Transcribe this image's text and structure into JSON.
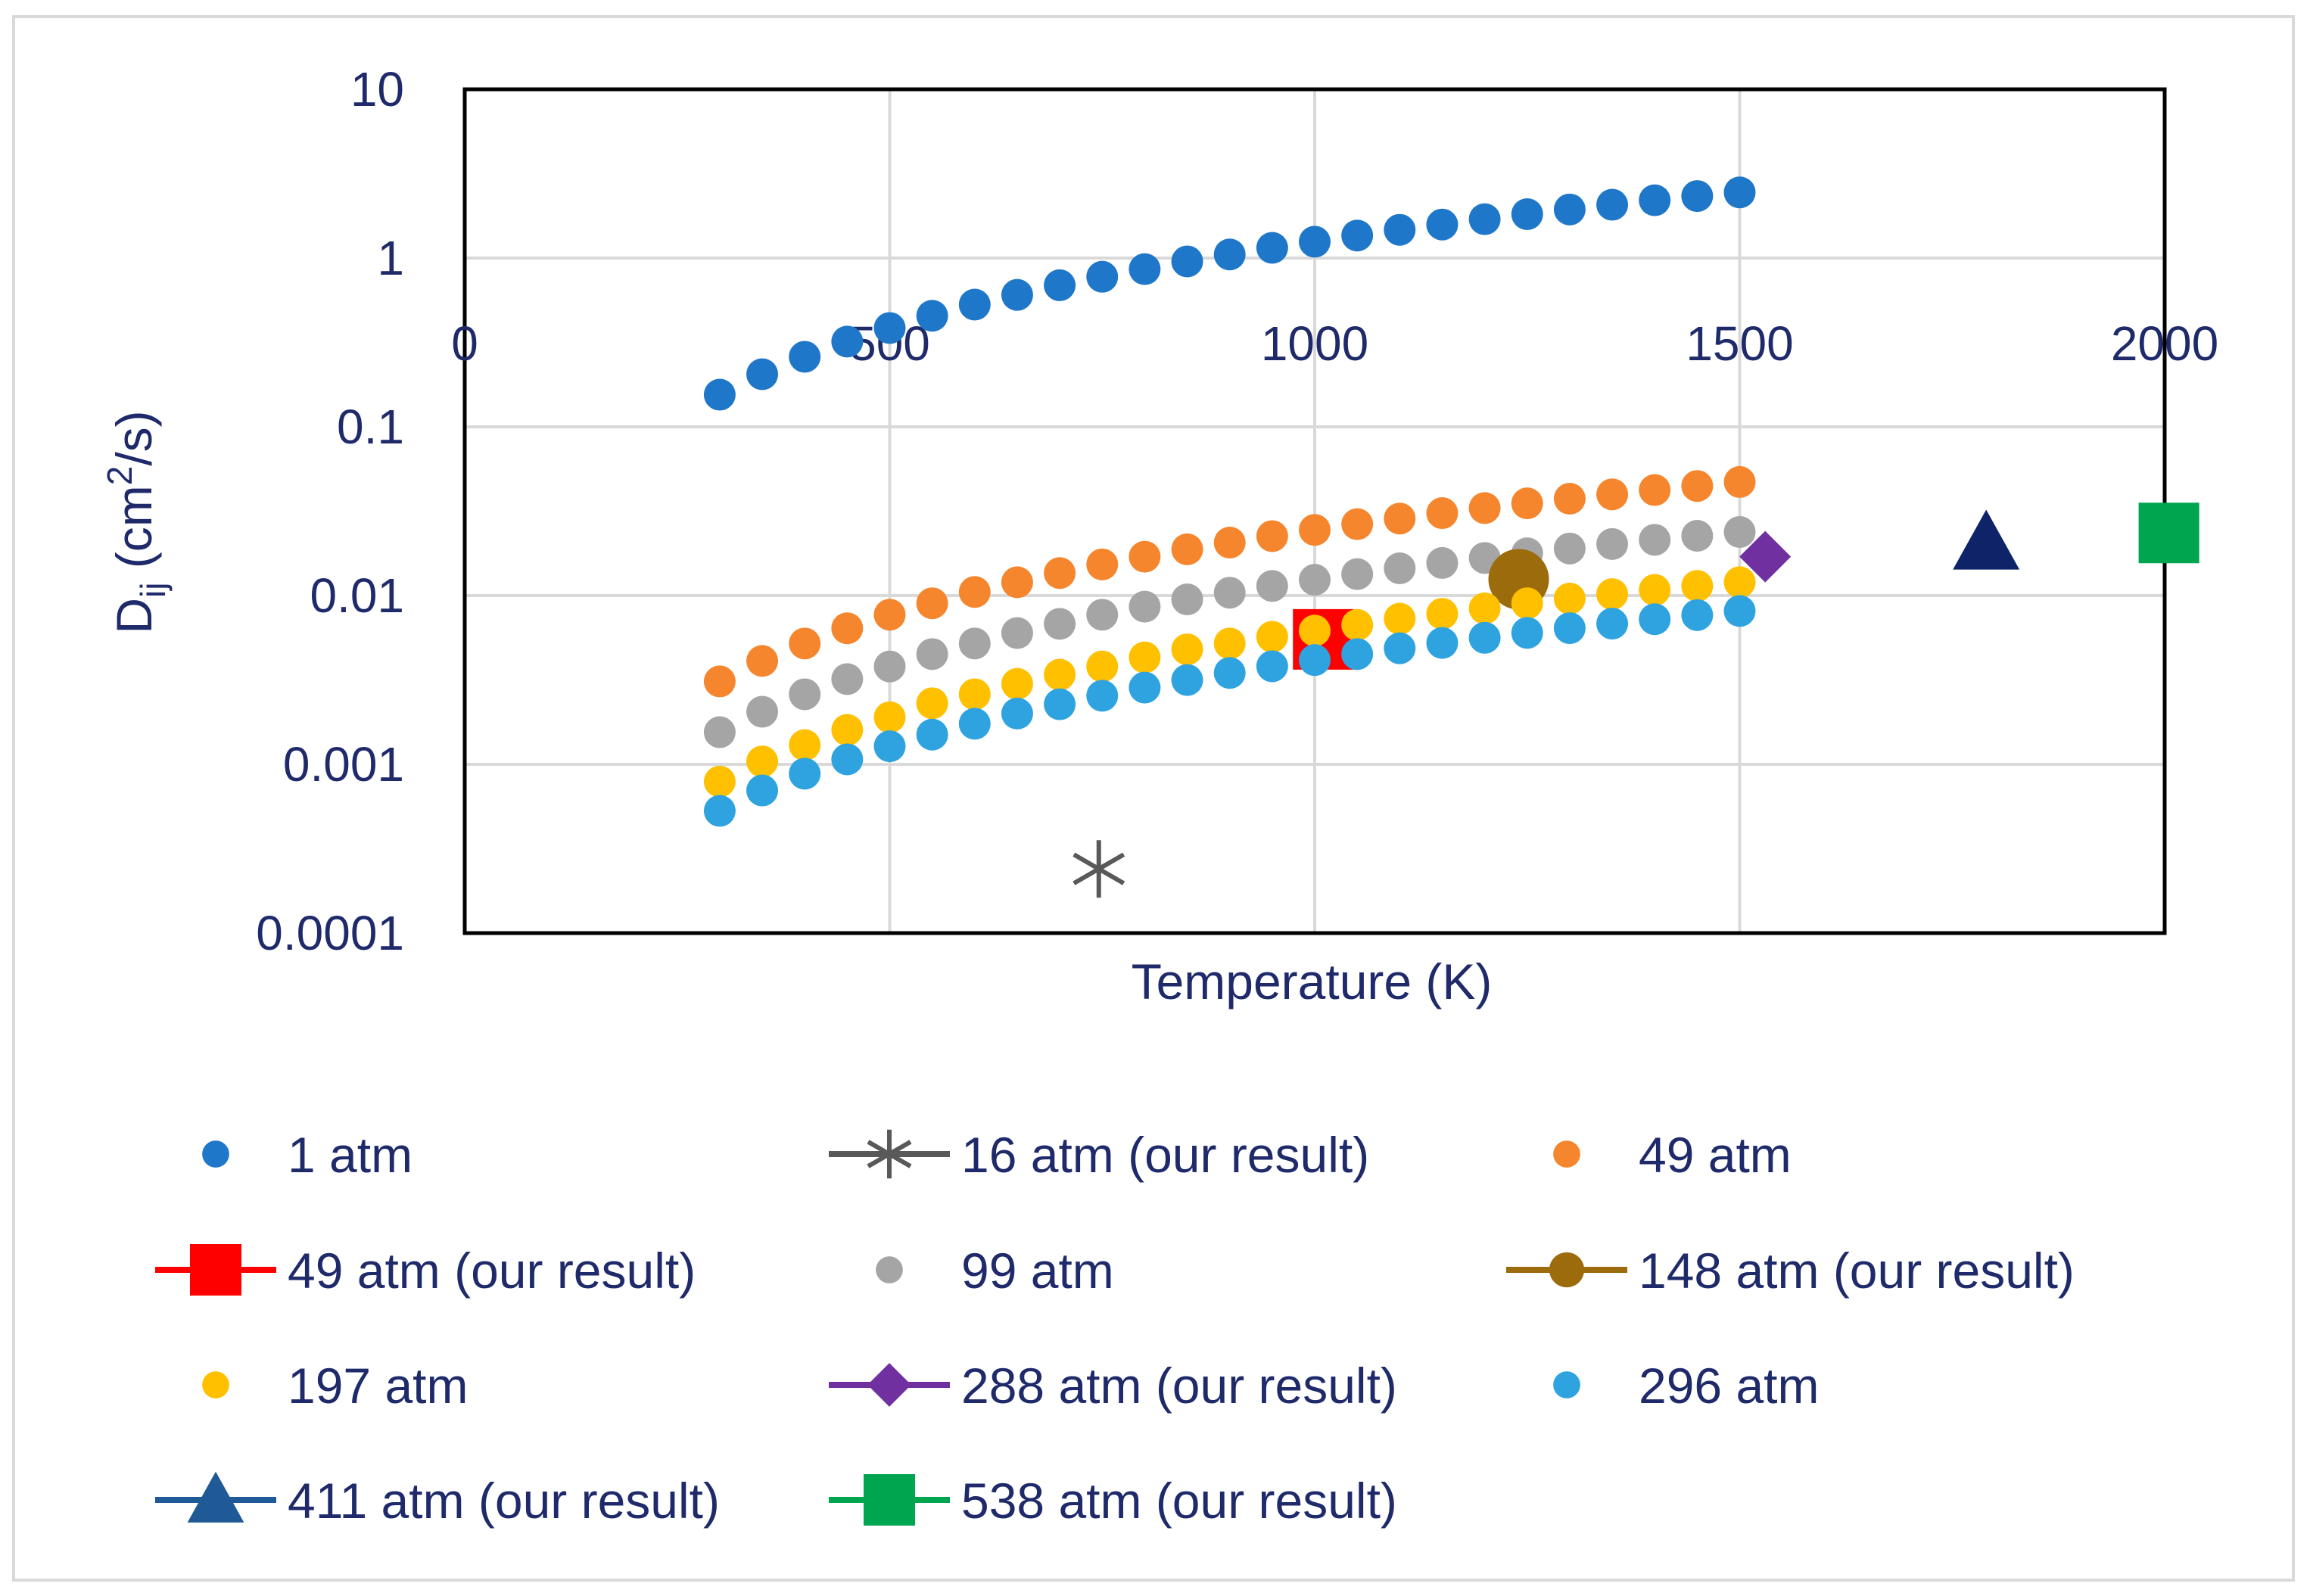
{
  "chart_data": {
    "type": "scatter",
    "title": "",
    "xlabel": "Temperature (K)",
    "ylabel_main": "D",
    "ylabel_sub": "ij",
    "ylabel_mid": " (cm",
    "ylabel_sup": "2",
    "ylabel_end": "/s)",
    "xlim": [
      0,
      2000
    ],
    "ylim": [
      0.0001,
      10
    ],
    "yscale": "log",
    "x_ticks": [
      "0",
      "500",
      "1000",
      "1500",
      "2000"
    ],
    "x_tick_values": [
      0,
      500,
      1000,
      1500,
      2000
    ],
    "y_ticks": [
      "10",
      "1",
      "0.1",
      "0.01",
      "0.001",
      "0.0001"
    ],
    "y_tick_values": [
      10,
      1,
      0.1,
      0.01,
      0.001,
      0.0001
    ],
    "grid": true,
    "legend_position": "bottom",
    "series": [
      {
        "name": "1 atm",
        "color": "#1f77c9",
        "marker": "circle",
        "x": [
          300,
          350,
          400,
          450,
          500,
          550,
          600,
          650,
          700,
          750,
          800,
          850,
          900,
          950,
          1000,
          1050,
          1100,
          1150,
          1200,
          1250,
          1300,
          1350,
          1400,
          1450,
          1500
        ],
        "y": [
          0.155,
          0.205,
          0.26,
          0.32,
          0.385,
          0.455,
          0.53,
          0.605,
          0.69,
          0.775,
          0.86,
          0.955,
          1.05,
          1.15,
          1.25,
          1.36,
          1.47,
          1.58,
          1.7,
          1.82,
          1.94,
          2.07,
          2.2,
          2.33,
          2.45
        ]
      },
      {
        "name": "16 atm (our result)",
        "color": "#595959",
        "marker": "star",
        "x": [
          746
        ],
        "y": [
          0.00024
        ]
      },
      {
        "name": "49 atm",
        "color": "#f5862e",
        "marker": "circle",
        "x": [
          300,
          350,
          400,
          450,
          500,
          550,
          600,
          650,
          700,
          750,
          800,
          850,
          900,
          950,
          1000,
          1050,
          1100,
          1150,
          1200,
          1250,
          1300,
          1350,
          1400,
          1450,
          1500
        ],
        "y": [
          0.0031,
          0.0041,
          0.0052,
          0.0064,
          0.0077,
          0.009,
          0.0105,
          0.012,
          0.0136,
          0.0153,
          0.017,
          0.0188,
          0.0206,
          0.0225,
          0.0245,
          0.0265,
          0.0286,
          0.0308,
          0.033,
          0.0352,
          0.0375,
          0.0398,
          0.0422,
          0.0446,
          0.0471
        ]
      },
      {
        "name": "49 atm (our result)",
        "color": "#ff0000",
        "marker": "square",
        "x": [
          1010
        ],
        "y": [
          0.0055
        ]
      },
      {
        "name": "99 atm",
        "color": "#a5a5a5",
        "marker": "circle",
        "x": [
          300,
          350,
          400,
          450,
          500,
          550,
          600,
          650,
          700,
          750,
          800,
          850,
          900,
          950,
          1000,
          1050,
          1100,
          1150,
          1200,
          1250,
          1300,
          1350,
          1400,
          1450,
          1500
        ],
        "y": [
          0.00155,
          0.00205,
          0.0026,
          0.0032,
          0.0038,
          0.0045,
          0.0052,
          0.006,
          0.0068,
          0.0077,
          0.0086,
          0.0095,
          0.0104,
          0.0114,
          0.0124,
          0.0134,
          0.0145,
          0.0156,
          0.0167,
          0.0178,
          0.019,
          0.0202,
          0.0214,
          0.0226,
          0.0238
        ]
      },
      {
        "name": "148 atm (our result)",
        "color": "#9c6b0c",
        "marker": "circle-large",
        "x": [
          1240
        ],
        "y": [
          0.0125
        ]
      },
      {
        "name": "197 atm",
        "color": "#ffc000",
        "marker": "circle",
        "x": [
          300,
          350,
          400,
          450,
          500,
          550,
          600,
          650,
          700,
          750,
          800,
          850,
          900,
          950,
          1000,
          1050,
          1100,
          1150,
          1200,
          1250,
          1300,
          1350,
          1400,
          1450,
          1500
        ],
        "y": [
          0.00079,
          0.00104,
          0.0013,
          0.0016,
          0.0019,
          0.0023,
          0.0026,
          0.003,
          0.0034,
          0.0038,
          0.0043,
          0.0048,
          0.0052,
          0.0057,
          0.0062,
          0.0067,
          0.0073,
          0.0078,
          0.0084,
          0.009,
          0.0096,
          0.0102,
          0.0108,
          0.0114,
          0.012
        ]
      },
      {
        "name": "288 atm (our result)",
        "color": "#7030a0",
        "marker": "diamond",
        "x": [
          1530
        ],
        "y": [
          0.017
        ]
      },
      {
        "name": "296 atm",
        "color": "#2ea3e0",
        "marker": "circle",
        "x": [
          300,
          350,
          400,
          450,
          500,
          550,
          600,
          650,
          700,
          750,
          800,
          850,
          900,
          950,
          1000,
          1050,
          1100,
          1150,
          1200,
          1250,
          1300,
          1350,
          1400,
          1450,
          1500
        ],
        "y": [
          0.00053,
          0.0007,
          0.00088,
          0.00107,
          0.00128,
          0.0015,
          0.00174,
          0.002,
          0.00227,
          0.00255,
          0.00285,
          0.00316,
          0.00348,
          0.00381,
          0.00415,
          0.0045,
          0.00487,
          0.00524,
          0.00562,
          0.00601,
          0.00641,
          0.00682,
          0.00724,
          0.00766,
          0.0081
        ]
      },
      {
        "name": "411 atm (our result)",
        "color": "#0f2468",
        "legend_color": "#1f5a96",
        "marker": "triangle",
        "x": [
          1790
        ],
        "y": [
          0.0205
        ]
      },
      {
        "name": "538 atm (our result)",
        "color": "#00a550",
        "marker": "square",
        "x": [
          2005
        ],
        "y": [
          0.0235
        ]
      }
    ]
  }
}
